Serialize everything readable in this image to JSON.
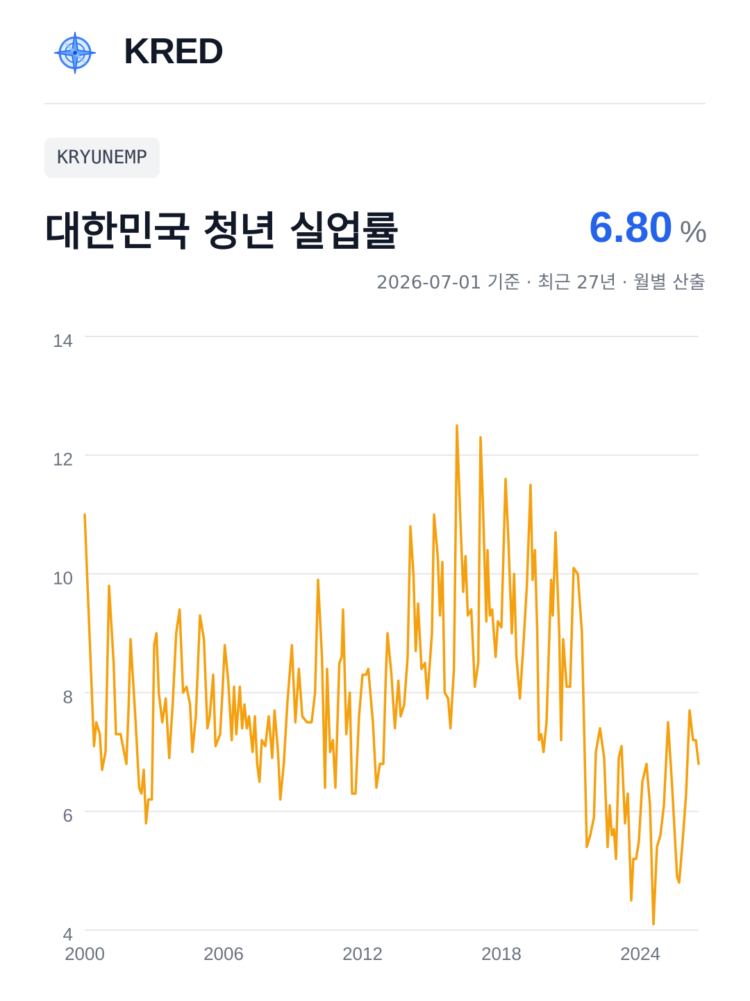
{
  "header": {
    "brand": "KRED"
  },
  "badge": "KRYUNEMP",
  "title": "대한민국 청년 실업률",
  "latest": {
    "value": "6.80",
    "unit": "%"
  },
  "subtitle": "2026-07-01 기준 · 최근 27년 · 월별 산출",
  "chart_data": {
    "type": "line",
    "color": "#f5a00f",
    "grid": true,
    "xlim": [
      2000,
      2026.52
    ],
    "xticks": [
      2000,
      2006,
      2012,
      2018,
      2024
    ],
    "ylim": [
      4,
      14
    ],
    "yticks": [
      4,
      6,
      8,
      10,
      12,
      14
    ],
    "x": [
      2000.0,
      2000.4,
      2000.5,
      2000.65,
      2000.75,
      2000.9,
      2001.05,
      2001.25,
      2001.35,
      2001.55,
      2001.8,
      2001.9,
      2001.98,
      2002.2,
      2002.35,
      2002.45,
      2002.55,
      2002.65,
      2002.75,
      2002.9,
      2003.0,
      2003.1,
      2003.2,
      2003.35,
      2003.5,
      2003.65,
      2003.8,
      2003.95,
      2004.1,
      2004.25,
      2004.4,
      2004.55,
      2004.65,
      2004.8,
      2004.98,
      2005.15,
      2005.3,
      2005.4,
      2005.55,
      2005.65,
      2005.85,
      2005.95,
      2006.05,
      2006.2,
      2006.35,
      2006.45,
      2006.55,
      2006.7,
      2006.8,
      2006.9,
      2007.0,
      2007.1,
      2007.25,
      2007.35,
      2007.45,
      2007.55,
      2007.65,
      2007.8,
      2007.95,
      2008.1,
      2008.2,
      2008.35,
      2008.45,
      2008.6,
      2008.75,
      2008.95,
      2009.1,
      2009.25,
      2009.4,
      2009.6,
      2009.8,
      2009.95,
      2010.08,
      2010.25,
      2010.38,
      2010.47,
      2010.6,
      2010.72,
      2010.83,
      2011.0,
      2011.1,
      2011.16,
      2011.3,
      2011.45,
      2011.55,
      2011.7,
      2011.85,
      2012.0,
      2012.15,
      2012.25,
      2012.45,
      2012.6,
      2012.75,
      2012.9,
      2013.0,
      2013.08,
      2013.25,
      2013.4,
      2013.55,
      2013.65,
      2013.8,
      2013.95,
      2014.07,
      2014.2,
      2014.3,
      2014.4,
      2014.55,
      2014.7,
      2014.8,
      2015.0,
      2015.09,
      2015.25,
      2015.35,
      2015.45,
      2015.55,
      2015.7,
      2015.8,
      2015.95,
      2016.08,
      2016.2,
      2016.35,
      2016.45,
      2016.55,
      2016.7,
      2016.85,
      2017.0,
      2017.1,
      2017.2,
      2017.35,
      2017.4,
      2017.5,
      2017.6,
      2017.75,
      2017.85,
      2018.0,
      2018.18,
      2018.3,
      2018.45,
      2018.55,
      2018.65,
      2018.8,
      2018.95,
      2019.1,
      2019.26,
      2019.35,
      2019.45,
      2019.55,
      2019.62,
      2019.72,
      2019.82,
      2019.95,
      2020.15,
      2020.22,
      2020.34,
      2020.5,
      2020.58,
      2020.67,
      2020.82,
      2020.97,
      2021.12,
      2021.3,
      2021.48,
      2021.69,
      2021.84,
      2022.0,
      2022.08,
      2022.26,
      2022.44,
      2022.59,
      2022.68,
      2022.77,
      2022.86,
      2022.95,
      2023.07,
      2023.19,
      2023.34,
      2023.46,
      2023.61,
      2023.7,
      2023.82,
      2023.94,
      2024.09,
      2024.27,
      2024.42,
      2024.57,
      2024.72,
      2024.87,
      2025.02,
      2025.2,
      2025.38,
      2025.59,
      2025.68,
      2025.83,
      2025.98,
      2026.13,
      2026.28,
      2026.4,
      2026.52
    ],
    "values": [
      11.0,
      7.1,
      7.5,
      7.3,
      6.7,
      7.0,
      9.8,
      8.5,
      7.3,
      7.3,
      6.8,
      7.8,
      8.9,
      7.5,
      6.4,
      6.3,
      6.7,
      5.8,
      6.2,
      6.2,
      8.8,
      9.0,
      8.0,
      7.5,
      7.9,
      6.9,
      7.8,
      9.0,
      9.4,
      8.0,
      8.1,
      7.8,
      7.0,
      7.6,
      9.3,
      8.9,
      7.4,
      7.6,
      8.3,
      7.1,
      7.3,
      8.0,
      8.8,
      8.2,
      7.2,
      8.1,
      7.3,
      8.1,
      7.4,
      7.8,
      7.4,
      7.6,
      7.0,
      7.6,
      6.8,
      6.5,
      7.2,
      7.1,
      7.6,
      6.9,
      7.7,
      7.0,
      6.2,
      6.8,
      7.8,
      8.8,
      7.5,
      8.4,
      7.6,
      7.5,
      7.5,
      8.0,
      9.9,
      8.6,
      6.4,
      8.4,
      7.0,
      7.2,
      6.4,
      8.5,
      8.6,
      9.4,
      7.3,
      8.0,
      6.3,
      6.3,
      7.6,
      8.3,
      8.3,
      8.4,
      7.5,
      6.4,
      6.8,
      6.8,
      8.2,
      9.0,
      8.3,
      7.4,
      8.2,
      7.6,
      7.8,
      8.6,
      10.8,
      10.0,
      8.7,
      9.5,
      8.4,
      8.5,
      7.9,
      9.0,
      11.0,
      10.3,
      9.3,
      10.2,
      8.0,
      7.9,
      7.4,
      8.4,
      12.5,
      11.2,
      9.7,
      10.3,
      9.3,
      9.4,
      8.1,
      8.5,
      12.3,
      11.2,
      9.2,
      10.4,
      9.3,
      9.4,
      8.6,
      9.2,
      9.1,
      11.6,
      10.6,
      9.0,
      10.0,
      8.6,
      7.9,
      8.8,
      9.8,
      11.5,
      9.9,
      10.4,
      9.0,
      7.2,
      7.3,
      7.0,
      7.5,
      9.9,
      9.3,
      10.7,
      9.0,
      7.2,
      8.9,
      8.1,
      8.1,
      10.1,
      10.0,
      9.0,
      5.4,
      5.6,
      5.9,
      7.0,
      7.4,
      6.9,
      5.4,
      6.1,
      5.6,
      5.7,
      5.2,
      6.9,
      7.1,
      5.8,
      6.3,
      4.5,
      5.2,
      5.2,
      5.5,
      6.5,
      6.8,
      6.1,
      4.1,
      5.4,
      5.6,
      6.1,
      7.5,
      6.4,
      4.9,
      4.8,
      5.5,
      6.3,
      7.7,
      7.2,
      7.2,
      6.8
    ]
  }
}
